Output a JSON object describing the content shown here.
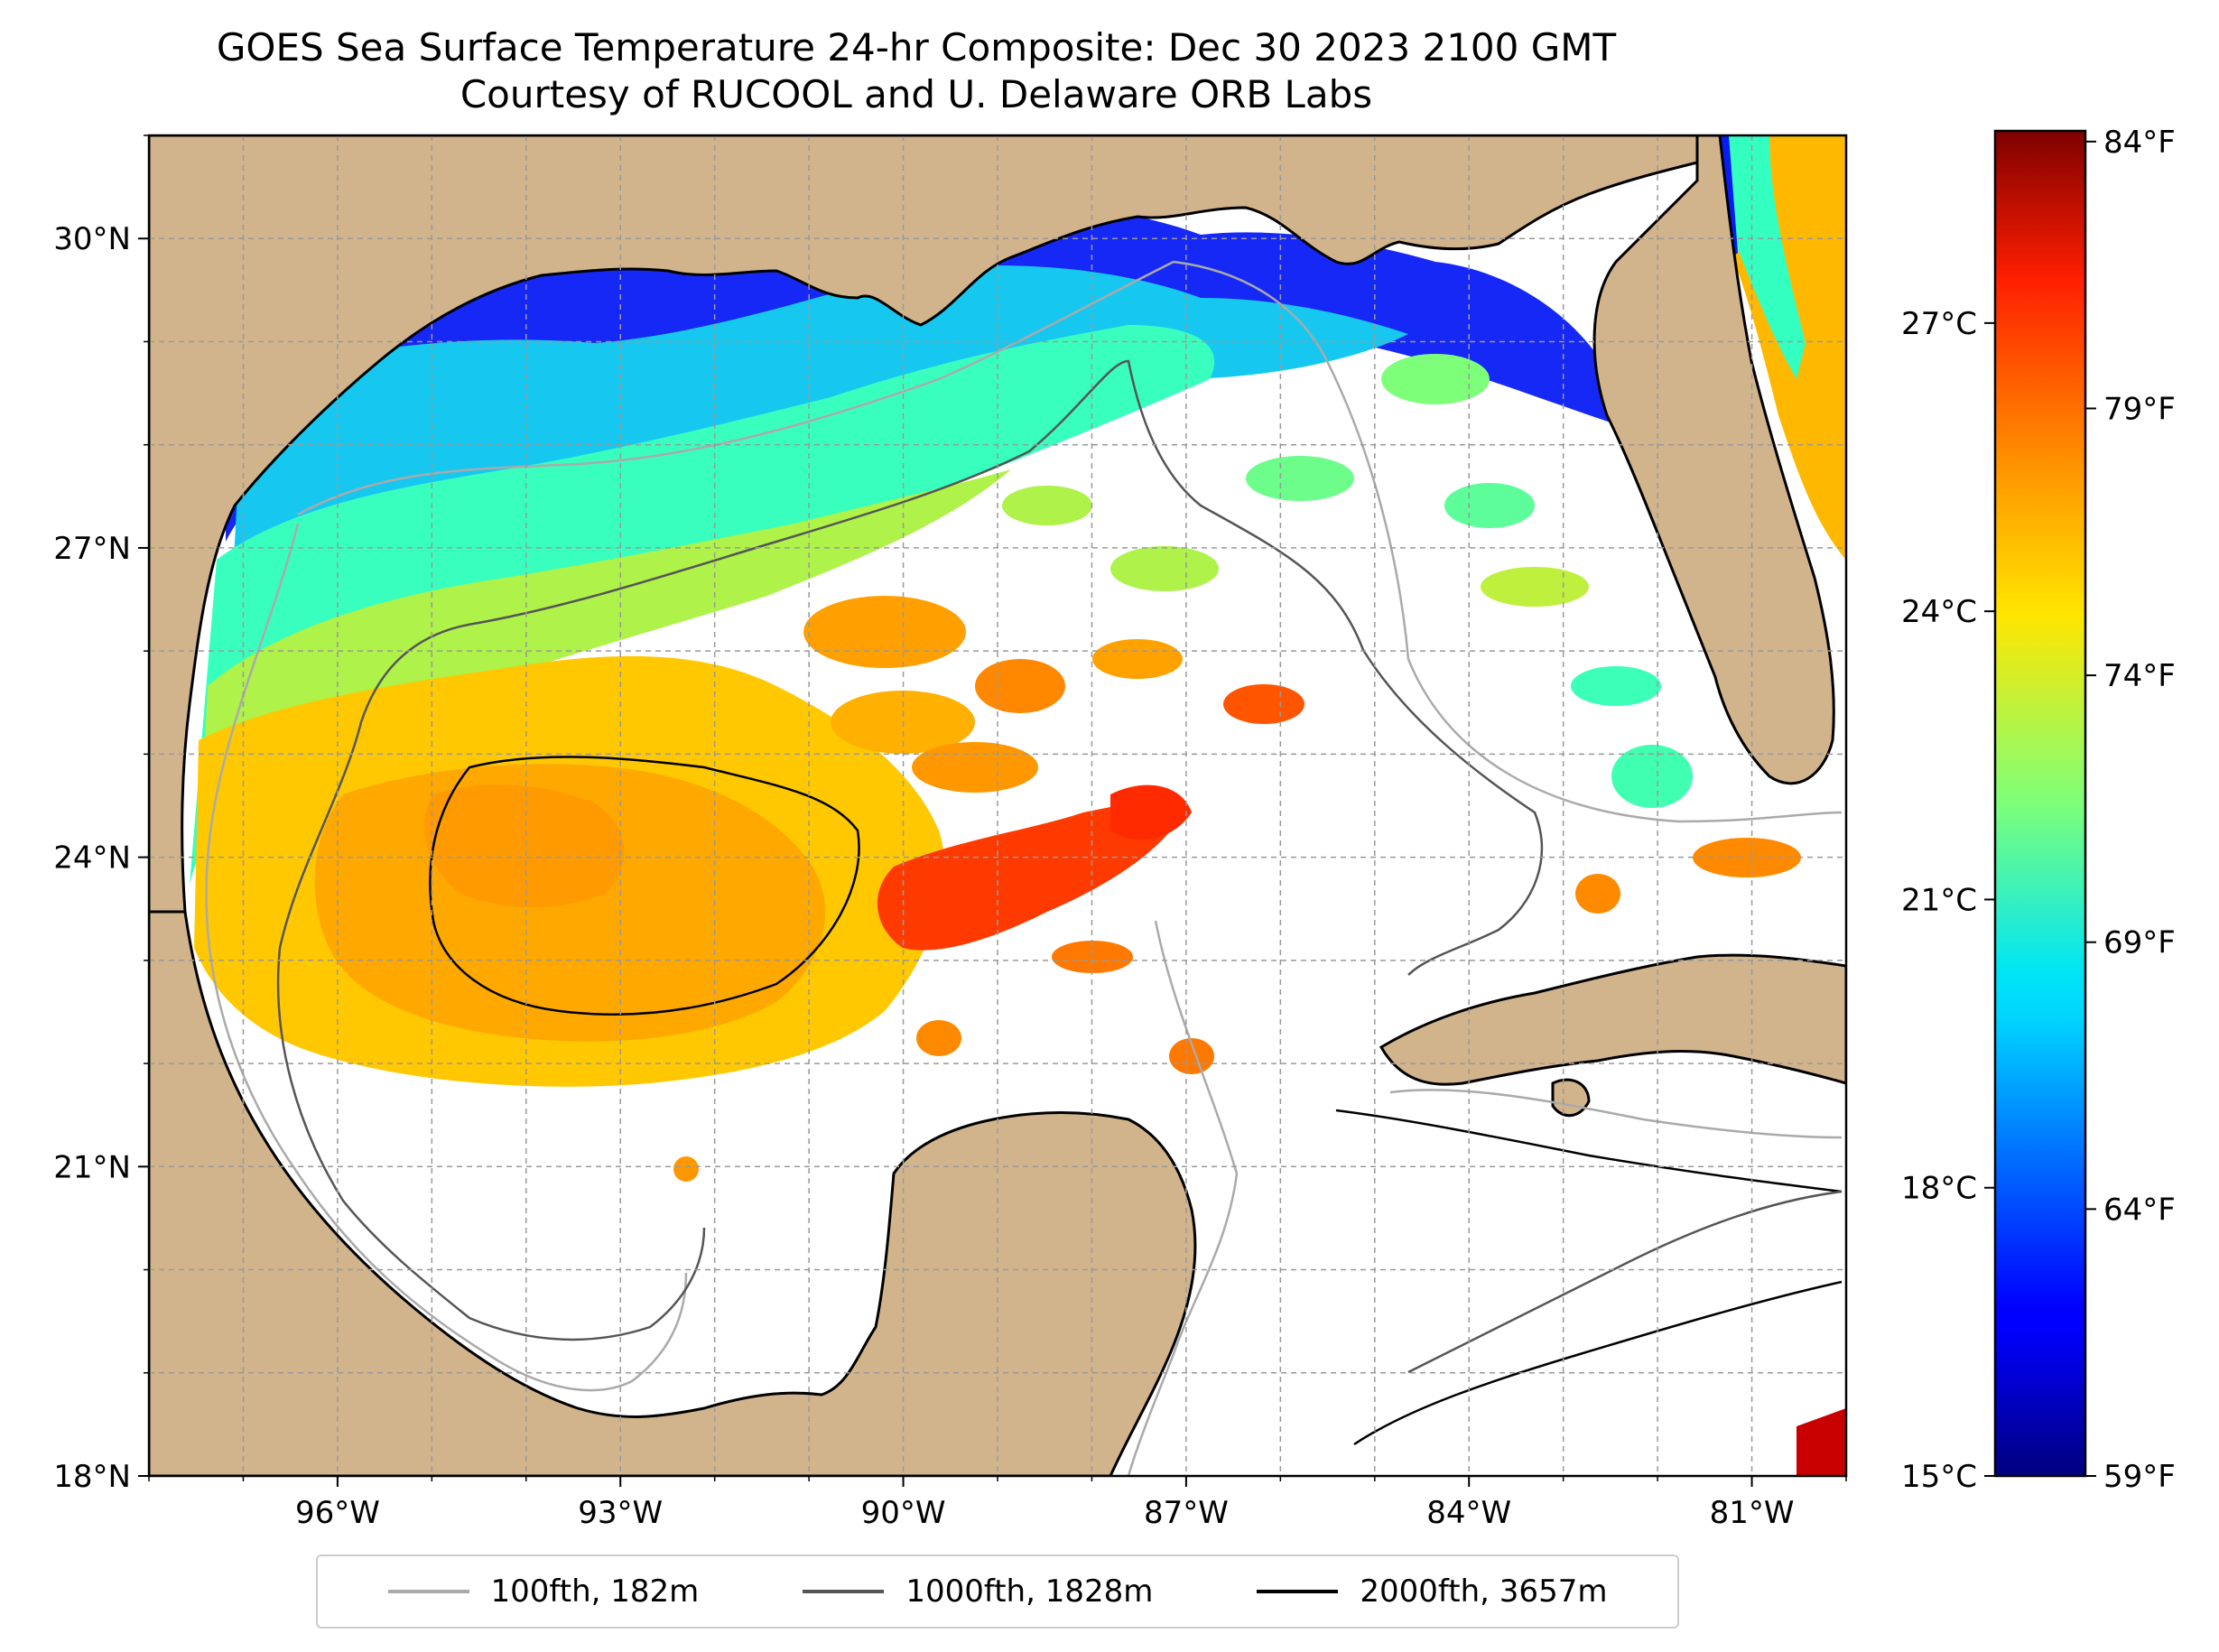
{
  "title": {
    "line1": "GOES Sea Surface Temperature 24-hr Composite: Dec 30 2023 2100 GMT",
    "line2": "Courtesy of RUCOOL and U. Delaware ORB Labs"
  },
  "map": {
    "extent": {
      "lon": [
        -98,
        -80
      ],
      "lat": [
        18,
        31
      ]
    },
    "lon_ticks": [
      {
        "value": -96,
        "label": "96°W"
      },
      {
        "value": -93,
        "label": "93°W"
      },
      {
        "value": -90,
        "label": "90°W"
      },
      {
        "value": -87,
        "label": "87°W"
      },
      {
        "value": -84,
        "label": "84°W"
      },
      {
        "value": -81,
        "label": "81°W"
      }
    ],
    "lat_ticks": [
      {
        "value": 18,
        "label": "18°N"
      },
      {
        "value": 21,
        "label": "21°N"
      },
      {
        "value": 24,
        "label": "24°N"
      },
      {
        "value": 27,
        "label": "27°N"
      },
      {
        "value": 30,
        "label": "30°N"
      }
    ],
    "gridlines": true,
    "land_color": "#d2b48c",
    "ocean_missing_color": "#ffffff"
  },
  "colorbar": {
    "colormap": "jet",
    "range_celsius": [
      15,
      29
    ],
    "celsius_ticks": [
      {
        "value": 15,
        "label": "15°C"
      },
      {
        "value": 18,
        "label": "18°C"
      },
      {
        "value": 21,
        "label": "21°C"
      },
      {
        "value": 24,
        "label": "24°C"
      },
      {
        "value": 27,
        "label": "27°C"
      }
    ],
    "fahrenheit_ticks": [
      {
        "value": 59,
        "label": "59°F"
      },
      {
        "value": 64,
        "label": "64°F"
      },
      {
        "value": 69,
        "label": "69°F"
      },
      {
        "value": 74,
        "label": "74°F"
      },
      {
        "value": 79,
        "label": "79°F"
      },
      {
        "value": 84,
        "label": "84°F"
      }
    ]
  },
  "legend": {
    "items": [
      {
        "label": "100fth, 182m",
        "color": "#aaaaaa"
      },
      {
        "label": "1000fth, 1828m",
        "color": "#555555"
      },
      {
        "label": "2000fth, 3657m",
        "color": "#000000"
      }
    ]
  }
}
